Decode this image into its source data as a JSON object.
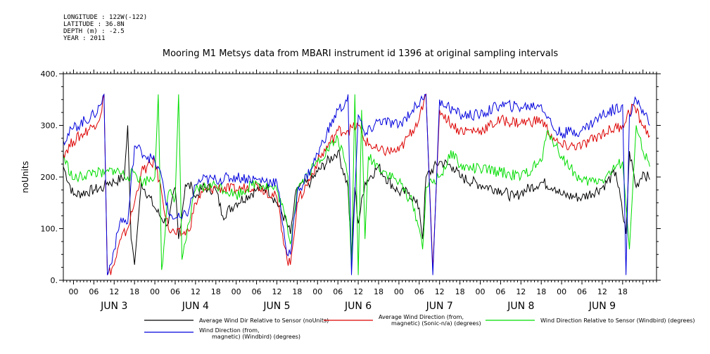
{
  "header": {
    "longitude": "LONGITUDE : 122W(-122)",
    "latitude": "LATITUDE : 36.8N",
    "depth": "DEPTH (m) : -2.5",
    "year": "YEAR : 2011"
  },
  "chart_data": {
    "type": "line",
    "title": "Mooring M1 Metsys data from MBARI instrument id 1396 at original sampling intervals",
    "ylabel": "noUnits",
    "xlabel": "",
    "ylim": [
      0,
      400
    ],
    "xlim": [
      -3,
      172
    ],
    "y_ticks": [
      0,
      100,
      200,
      300,
      400
    ],
    "y_tick_labels": [
      "0.",
      "100.",
      "200.",
      "300.",
      "400."
    ],
    "hour_ticks": [
      0,
      6,
      12,
      18,
      24,
      30,
      36,
      42,
      48,
      54,
      60,
      66,
      72,
      78,
      84,
      90,
      96,
      102,
      108,
      114,
      120,
      126,
      132,
      138,
      144,
      150,
      156,
      162,
      168
    ],
    "hour_tick_labels": [
      "00",
      "06",
      "12",
      "18",
      "00",
      "06",
      "12",
      "18",
      "00",
      "06",
      "12",
      "18",
      "00",
      "06",
      "12",
      "18",
      "00",
      "06",
      "12",
      "18",
      "00",
      "06",
      "12",
      "18",
      "00",
      "06",
      "12",
      "18",
      ""
    ],
    "day_labels": [
      "JUN 3",
      "JUN 4",
      "JUN 5",
      "JUN 6",
      "JUN 7",
      "JUN 8",
      "JUN 9"
    ],
    "day_centers": [
      12,
      36,
      60,
      84,
      108,
      132,
      156
    ],
    "x_units": "hours since 2011-06-03 00:00",
    "series": [
      {
        "name": "Average Wind Dir Relative to Sensor (noUnits)",
        "color": "#000000",
        "x": [
          -3,
          0,
          6,
          9,
          10,
          12,
          15,
          16,
          17,
          18,
          20,
          24,
          26,
          28,
          30,
          31,
          33,
          35,
          36,
          38,
          42,
          44,
          48,
          54,
          57,
          60,
          63,
          64,
          65,
          66,
          70,
          72,
          78,
          81,
          82,
          83,
          84,
          86,
          90,
          92,
          96,
          99,
          101,
          102,
          103,
          104,
          108,
          112,
          114,
          120,
          126,
          130,
          132,
          138,
          142,
          144,
          150,
          156,
          160,
          163,
          164,
          166,
          168,
          170
        ],
        "y": [
          220,
          165,
          175,
          180,
          190,
          190,
          200,
          300,
          80,
          30,
          190,
          140,
          120,
          110,
          180,
          80,
          185,
          180,
          160,
          180,
          175,
          125,
          150,
          175,
          180,
          150,
          110,
          90,
          140,
          180,
          190,
          210,
          250,
          180,
          40,
          180,
          110,
          190,
          220,
          200,
          170,
          170,
          150,
          140,
          80,
          200,
          230,
          220,
          200,
          185,
          175,
          160,
          170,
          190,
          180,
          165,
          160,
          180,
          210,
          90,
          250,
          180,
          210,
          195
        ]
      },
      {
        "name": "Average Wind Direction (from, magnetic) (Sonic-n/a) (degrees)",
        "color": "#dd0000",
        "x": [
          -3,
          0,
          6,
          8,
          9,
          10,
          12,
          14,
          16,
          18,
          20,
          24,
          26,
          28,
          30,
          32,
          34,
          36,
          38,
          42,
          48,
          54,
          60,
          63,
          64,
          66,
          70,
          72,
          78,
          81,
          84,
          86,
          90,
          96,
          100,
          103,
          104,
          106,
          108,
          112,
          114,
          120,
          126,
          132,
          138,
          142,
          144,
          150,
          156,
          162,
          165,
          168,
          170
        ],
        "y": [
          245,
          270,
          300,
          320,
          360,
          10,
          30,
          80,
          100,
          150,
          210,
          230,
          170,
          100,
          90,
          90,
          95,
          150,
          170,
          180,
          175,
          185,
          160,
          40,
          30,
          150,
          200,
          230,
          290,
          290,
          300,
          270,
          250,
          250,
          290,
          330,
          360,
          20,
          330,
          300,
          290,
          290,
          310,
          305,
          310,
          270,
          260,
          260,
          285,
          300,
          340,
          300,
          280
        ]
      },
      {
        "name": "Wind Direction Relative to Sensor (Windbird) (degrees)",
        "color": "#00dd00",
        "x": [
          -3,
          0,
          6,
          9,
          12,
          16,
          18,
          20,
          24,
          25,
          26,
          28,
          30,
          31,
          32,
          36,
          42,
          48,
          54,
          60,
          63,
          64,
          66,
          72,
          78,
          80,
          81,
          82,
          83,
          84,
          85,
          86,
          87,
          90,
          96,
          100,
          102,
          103,
          104,
          108,
          112,
          114,
          120,
          126,
          132,
          138,
          140,
          144,
          150,
          156,
          162,
          164,
          166,
          168,
          170
        ],
        "y": [
          240,
          195,
          210,
          205,
          215,
          200,
          210,
          190,
          200,
          360,
          20,
          170,
          160,
          360,
          40,
          175,
          185,
          165,
          190,
          175,
          110,
          70,
          180,
          230,
          275,
          230,
          200,
          20,
          360,
          10,
          330,
          80,
          240,
          220,
          190,
          150,
          100,
          60,
          180,
          200,
          250,
          220,
          215,
          210,
          200,
          230,
          290,
          240,
          190,
          195,
          230,
          60,
          300,
          250,
          220
        ]
      },
      {
        "name": "Wind Direction (from, magnetic) (Windbird) (degrees)",
        "color": "#0000dd",
        "x": [
          -3,
          0,
          6,
          8,
          9,
          10,
          12,
          14,
          16,
          18,
          20,
          24,
          26,
          28,
          30,
          32,
          34,
          36,
          38,
          42,
          48,
          54,
          60,
          62,
          63,
          64,
          66,
          70,
          72,
          78,
          80,
          81,
          82,
          84,
          86,
          90,
          96,
          100,
          103,
          104,
          106,
          108,
          112,
          114,
          120,
          126,
          132,
          138,
          142,
          144,
          150,
          156,
          162,
          163,
          164,
          166,
          168,
          170
        ],
        "y": [
          270,
          295,
          320,
          340,
          360,
          10,
          60,
          120,
          110,
          260,
          250,
          230,
          200,
          130,
          120,
          120,
          135,
          185,
          195,
          195,
          200,
          195,
          190,
          100,
          50,
          50,
          170,
          215,
          245,
          330,
          340,
          360,
          10,
          320,
          280,
          310,
          300,
          330,
          350,
          360,
          10,
          350,
          330,
          320,
          320,
          340,
          335,
          340,
          290,
          285,
          290,
          320,
          340,
          10,
          320,
          350,
          330,
          300
        ]
      }
    ],
    "legend_placement": "bottom",
    "legend": [
      "Average Wind Dir Relative to Sensor (noUnits)",
      "Average Wind Direction (from, magnetic) (Sonic-n/a) (degrees)",
      "Wind Direction Relative to Sensor (Windbird) (degrees)",
      "Wind Direction (from, magnetic) (Windbird) (degrees)"
    ],
    "grid": false
  }
}
